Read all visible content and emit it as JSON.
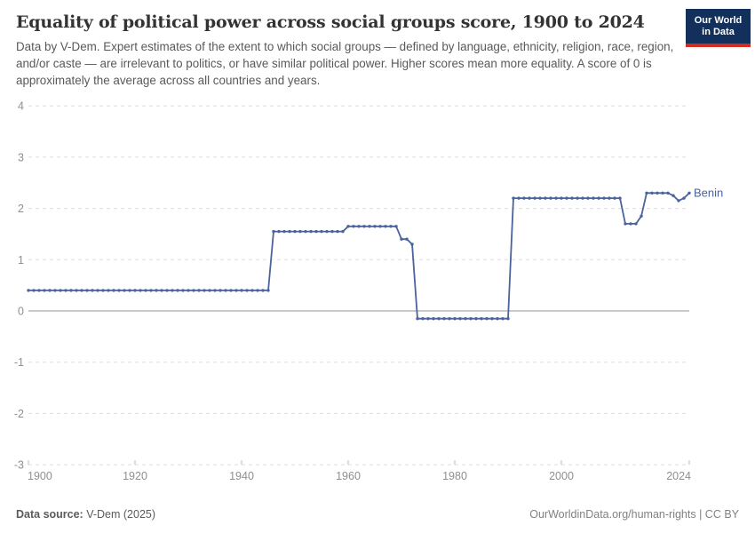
{
  "header": {
    "title": "Equality of political power across social groups score, 1900 to 2024",
    "subtitle": "Data by V-Dem. Expert estimates of the extent to which social groups — defined by language, ethnicity, religion, race, region, and/or caste — are irrelevant to politics, or have similar political power. Higher scores mean more equality. A score of 0 is approximately the average across all countries and years.",
    "logo": {
      "line1": "Our World",
      "line2": "in Data",
      "bg_color": "#12305b",
      "accent_color": "#d42b21",
      "text_color": "#ffffff"
    }
  },
  "chart_data": {
    "type": "line",
    "title": "Equality of political power across social groups score, 1900 to 2024",
    "xlabel": "",
    "ylabel": "",
    "xlim": [
      1900,
      2024
    ],
    "ylim": [
      -3,
      4
    ],
    "x_ticks": [
      1900,
      1920,
      1940,
      1960,
      1980,
      2000,
      2024
    ],
    "y_ticks": [
      4,
      3,
      2,
      1,
      0,
      -1,
      -2,
      -3
    ],
    "grid": "horizontal dashed",
    "zero_line": true,
    "legend_position": "end-of-line label",
    "series": [
      {
        "name": "Benin",
        "color": "#4a639c",
        "points": [
          [
            1900,
            0.4
          ],
          [
            1901,
            0.4
          ],
          [
            1902,
            0.4
          ],
          [
            1903,
            0.4
          ],
          [
            1904,
            0.4
          ],
          [
            1905,
            0.4
          ],
          [
            1906,
            0.4
          ],
          [
            1907,
            0.4
          ],
          [
            1908,
            0.4
          ],
          [
            1909,
            0.4
          ],
          [
            1910,
            0.4
          ],
          [
            1911,
            0.4
          ],
          [
            1912,
            0.4
          ],
          [
            1913,
            0.4
          ],
          [
            1914,
            0.4
          ],
          [
            1915,
            0.4
          ],
          [
            1916,
            0.4
          ],
          [
            1917,
            0.4
          ],
          [
            1918,
            0.4
          ],
          [
            1919,
            0.4
          ],
          [
            1920,
            0.4
          ],
          [
            1921,
            0.4
          ],
          [
            1922,
            0.4
          ],
          [
            1923,
            0.4
          ],
          [
            1924,
            0.4
          ],
          [
            1925,
            0.4
          ],
          [
            1926,
            0.4
          ],
          [
            1927,
            0.4
          ],
          [
            1928,
            0.4
          ],
          [
            1929,
            0.4
          ],
          [
            1930,
            0.4
          ],
          [
            1931,
            0.4
          ],
          [
            1932,
            0.4
          ],
          [
            1933,
            0.4
          ],
          [
            1934,
            0.4
          ],
          [
            1935,
            0.4
          ],
          [
            1936,
            0.4
          ],
          [
            1937,
            0.4
          ],
          [
            1938,
            0.4
          ],
          [
            1939,
            0.4
          ],
          [
            1940,
            0.4
          ],
          [
            1941,
            0.4
          ],
          [
            1942,
            0.4
          ],
          [
            1943,
            0.4
          ],
          [
            1944,
            0.4
          ],
          [
            1945,
            0.4
          ],
          [
            1946,
            1.55
          ],
          [
            1947,
            1.55
          ],
          [
            1948,
            1.55
          ],
          [
            1949,
            1.55
          ],
          [
            1950,
            1.55
          ],
          [
            1951,
            1.55
          ],
          [
            1952,
            1.55
          ],
          [
            1953,
            1.55
          ],
          [
            1954,
            1.55
          ],
          [
            1955,
            1.55
          ],
          [
            1956,
            1.55
          ],
          [
            1957,
            1.55
          ],
          [
            1958,
            1.55
          ],
          [
            1959,
            1.55
          ],
          [
            1960,
            1.65
          ],
          [
            1961,
            1.65
          ],
          [
            1962,
            1.65
          ],
          [
            1963,
            1.65
          ],
          [
            1964,
            1.65
          ],
          [
            1965,
            1.65
          ],
          [
            1966,
            1.65
          ],
          [
            1967,
            1.65
          ],
          [
            1968,
            1.65
          ],
          [
            1969,
            1.65
          ],
          [
            1970,
            1.4
          ],
          [
            1971,
            1.4
          ],
          [
            1972,
            1.3
          ],
          [
            1973,
            -0.15
          ],
          [
            1974,
            -0.15
          ],
          [
            1975,
            -0.15
          ],
          [
            1976,
            -0.15
          ],
          [
            1977,
            -0.15
          ],
          [
            1978,
            -0.15
          ],
          [
            1979,
            -0.15
          ],
          [
            1980,
            -0.15
          ],
          [
            1981,
            -0.15
          ],
          [
            1982,
            -0.15
          ],
          [
            1983,
            -0.15
          ],
          [
            1984,
            -0.15
          ],
          [
            1985,
            -0.15
          ],
          [
            1986,
            -0.15
          ],
          [
            1987,
            -0.15
          ],
          [
            1988,
            -0.15
          ],
          [
            1989,
            -0.15
          ],
          [
            1990,
            -0.15
          ],
          [
            1991,
            2.2
          ],
          [
            1992,
            2.2
          ],
          [
            1993,
            2.2
          ],
          [
            1994,
            2.2
          ],
          [
            1995,
            2.2
          ],
          [
            1996,
            2.2
          ],
          [
            1997,
            2.2
          ],
          [
            1998,
            2.2
          ],
          [
            1999,
            2.2
          ],
          [
            2000,
            2.2
          ],
          [
            2001,
            2.2
          ],
          [
            2002,
            2.2
          ],
          [
            2003,
            2.2
          ],
          [
            2004,
            2.2
          ],
          [
            2005,
            2.2
          ],
          [
            2006,
            2.2
          ],
          [
            2007,
            2.2
          ],
          [
            2008,
            2.2
          ],
          [
            2009,
            2.2
          ],
          [
            2010,
            2.2
          ],
          [
            2011,
            2.2
          ],
          [
            2012,
            1.7
          ],
          [
            2013,
            1.7
          ],
          [
            2014,
            1.7
          ],
          [
            2015,
            1.85
          ],
          [
            2016,
            2.3
          ],
          [
            2017,
            2.3
          ],
          [
            2018,
            2.3
          ],
          [
            2019,
            2.3
          ],
          [
            2020,
            2.3
          ],
          [
            2021,
            2.25
          ],
          [
            2022,
            2.15
          ],
          [
            2023,
            2.2
          ],
          [
            2024,
            2.3
          ]
        ]
      }
    ]
  },
  "footer": {
    "source_label": "Data source:",
    "source_value": " V-Dem (2025)",
    "right_text": "OurWorldinData.org/human-rights | CC BY"
  },
  "colors": {
    "series_blue": "#4a639c",
    "gridline": "#dedede",
    "zero_line": "#949494",
    "axis_text": "#8f8f8f",
    "title_text": "#333333",
    "subtitle_text": "#595959"
  }
}
